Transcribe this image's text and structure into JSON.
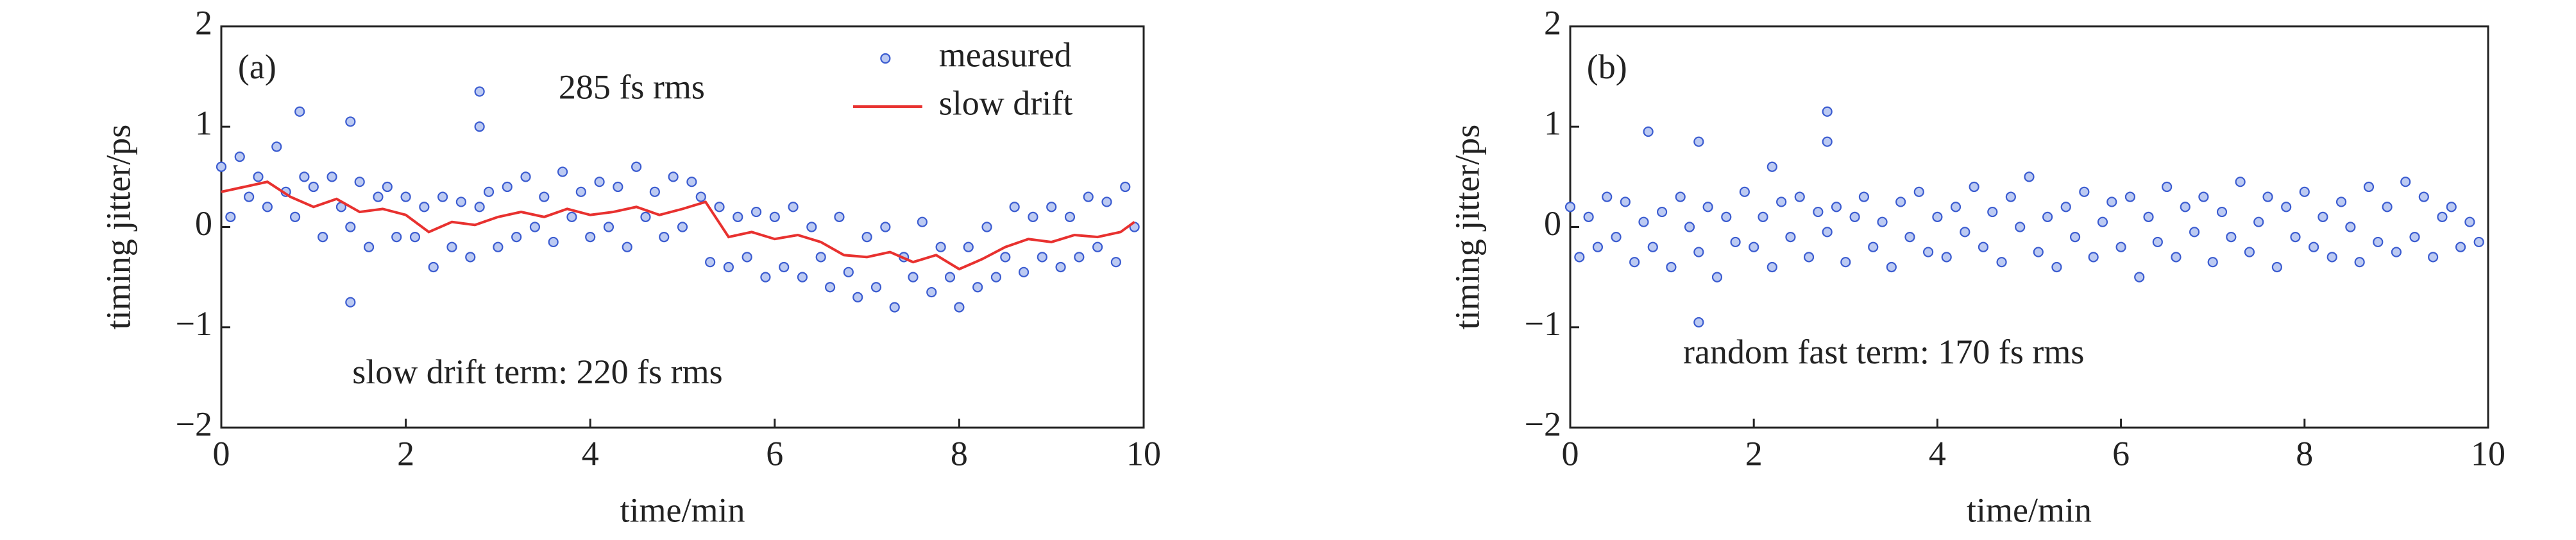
{
  "chart_data": [
    {
      "type": "scatter",
      "label": "(a)",
      "xlabel": "time/min",
      "ylabel": "timing jitter/ps",
      "annotations": [
        "285 fs rms",
        "slow drift term: 220 fs rms"
      ],
      "xlim": [
        0,
        10
      ],
      "ylim": [
        -2,
        2
      ],
      "xticks": [
        0,
        2,
        4,
        6,
        8,
        10
      ],
      "yticks": [
        {
          "value": -2,
          "label": "−2"
        },
        {
          "value": -1,
          "label": "−1"
        },
        0,
        1,
        2
      ],
      "legend": "upper right",
      "series": [
        {
          "name": "measured",
          "type": "scatter",
          "color": "#3a5bd0",
          "x": [
            0,
            0.1,
            0.2,
            0.3,
            0.4,
            0.5,
            0.6,
            0.7,
            0.8,
            0.9,
            1,
            1.1,
            1.2,
            1.3,
            1.4,
            1.5,
            1.6,
            1.7,
            1.8,
            1.9,
            2,
            2.1,
            2.2,
            2.3,
            2.4,
            2.5,
            2.6,
            2.7,
            2.8,
            2.9,
            3,
            3.1,
            3.2,
            3.3,
            3.4,
            3.5,
            3.6,
            3.7,
            3.8,
            3.9,
            4,
            4.1,
            4.2,
            4.3,
            4.4,
            4.5,
            4.6,
            4.7,
            4.8,
            4.9,
            5,
            5.1,
            5.2,
            5.3,
            5.4,
            5.5,
            5.6,
            5.7,
            5.8,
            5.9,
            6,
            6.1,
            6.2,
            6.3,
            6.4,
            6.5,
            6.6,
            6.7,
            6.8,
            6.9,
            7,
            7.1,
            7.2,
            7.3,
            7.4,
            7.5,
            7.6,
            7.7,
            7.8,
            7.9,
            8,
            8.1,
            8.2,
            8.3,
            8.4,
            8.5,
            8.6,
            8.7,
            8.8,
            8.9,
            9,
            9.1,
            9.2,
            9.3,
            9.4,
            9.5,
            9.6,
            9.7,
            9.8,
            9.9,
            0.85,
            1.4,
            2.8,
            2.8,
            1.4
          ],
          "values": [
            0.6,
            0.1,
            0.7,
            0.3,
            0.5,
            0.2,
            0.8,
            0.35,
            0.1,
            0.5,
            0.4,
            -0.1,
            0.5,
            0.2,
            0.0,
            0.45,
            -0.2,
            0.3,
            0.4,
            -0.1,
            0.3,
            -0.1,
            0.2,
            -0.4,
            0.3,
            -0.2,
            0.25,
            -0.3,
            0.2,
            0.35,
            -0.2,
            0.4,
            -0.1,
            0.5,
            0.0,
            0.3,
            -0.15,
            0.55,
            0.1,
            0.35,
            -0.1,
            0.45,
            0.0,
            0.4,
            -0.2,
            0.6,
            0.1,
            0.35,
            -0.1,
            0.5,
            0.0,
            0.45,
            0.3,
            -0.35,
            0.2,
            -0.4,
            0.1,
            -0.3,
            0.15,
            -0.5,
            0.1,
            -0.4,
            0.2,
            -0.5,
            0.0,
            -0.3,
            -0.6,
            0.1,
            -0.45,
            -0.7,
            -0.1,
            -0.6,
            0.0,
            -0.8,
            -0.3,
            -0.5,
            0.05,
            -0.65,
            -0.2,
            -0.5,
            -0.8,
            -0.2,
            -0.6,
            0.0,
            -0.5,
            -0.3,
            0.2,
            -0.45,
            0.1,
            -0.3,
            0.2,
            -0.4,
            0.1,
            -0.3,
            0.3,
            -0.2,
            0.25,
            -0.35,
            0.4,
            0.0,
            1.15,
            1.05,
            1.35,
            1.0,
            -0.75
          ]
        },
        {
          "name": "slow drift",
          "type": "line",
          "color": "#e8312f",
          "x": [
            0,
            0.25,
            0.5,
            0.75,
            1,
            1.25,
            1.5,
            1.75,
            2,
            2.25,
            2.5,
            2.75,
            3,
            3.25,
            3.5,
            3.75,
            4,
            4.25,
            4.5,
            4.75,
            5,
            5.25,
            5.5,
            5.75,
            6,
            6.25,
            6.5,
            6.75,
            7,
            7.25,
            7.5,
            7.75,
            8,
            8.25,
            8.5,
            8.75,
            9,
            9.25,
            9.5,
            9.75,
            9.9
          ],
          "values": [
            0.35,
            0.4,
            0.45,
            0.3,
            0.2,
            0.28,
            0.15,
            0.18,
            0.12,
            -0.05,
            0.05,
            0.02,
            0.1,
            0.15,
            0.1,
            0.18,
            0.12,
            0.15,
            0.2,
            0.12,
            0.18,
            0.25,
            -0.1,
            -0.05,
            -0.12,
            -0.08,
            -0.15,
            -0.28,
            -0.3,
            -0.25,
            -0.35,
            -0.28,
            -0.42,
            -0.32,
            -0.2,
            -0.12,
            -0.15,
            -0.08,
            -0.1,
            -0.05,
            0.05
          ]
        }
      ]
    },
    {
      "type": "scatter",
      "label": "(b)",
      "xlabel": "time/min",
      "ylabel": "timing jitter/ps",
      "annotations": [
        "random fast term: 170 fs rms"
      ],
      "xlim": [
        0,
        10
      ],
      "ylim": [
        -2,
        2
      ],
      "xticks": [
        0,
        2,
        4,
        6,
        8,
        10
      ],
      "yticks": [
        {
          "value": -2,
          "label": "−2"
        },
        {
          "value": -1,
          "label": "−1"
        },
        0,
        1,
        2
      ],
      "series": [
        {
          "type": "scatter",
          "color": "#3a5bd0",
          "x": [
            0,
            0.1,
            0.2,
            0.3,
            0.4,
            0.5,
            0.6,
            0.7,
            0.8,
            0.9,
            1,
            1.1,
            1.2,
            1.3,
            1.4,
            1.5,
            1.6,
            1.7,
            1.8,
            1.9,
            2,
            2.1,
            2.2,
            2.3,
            2.4,
            2.5,
            2.6,
            2.7,
            2.8,
            2.9,
            3,
            3.1,
            3.2,
            3.3,
            3.4,
            3.5,
            3.6,
            3.7,
            3.8,
            3.9,
            4,
            4.1,
            4.2,
            4.3,
            4.4,
            4.5,
            4.6,
            4.7,
            4.8,
            4.9,
            5,
            5.1,
            5.2,
            5.3,
            5.4,
            5.5,
            5.6,
            5.7,
            5.8,
            5.9,
            6,
            6.1,
            6.2,
            6.3,
            6.4,
            6.5,
            6.6,
            6.7,
            6.8,
            6.9,
            7,
            7.1,
            7.2,
            7.3,
            7.4,
            7.5,
            7.6,
            7.7,
            7.8,
            7.9,
            8,
            8.1,
            8.2,
            8.3,
            8.4,
            8.5,
            8.6,
            8.7,
            8.8,
            8.9,
            9,
            9.1,
            9.2,
            9.3,
            9.4,
            9.5,
            9.6,
            9.7,
            9.8,
            9.9,
            0.85,
            1.4,
            2.8,
            2.8,
            1.4,
            2.2
          ],
          "values": [
            0.2,
            -0.3,
            0.1,
            -0.2,
            0.3,
            -0.1,
            0.25,
            -0.35,
            0.05,
            -0.2,
            0.15,
            -0.4,
            0.3,
            0.0,
            -0.25,
            0.2,
            -0.5,
            0.1,
            -0.15,
            0.35,
            -0.2,
            0.1,
            -0.4,
            0.25,
            -0.1,
            0.3,
            -0.3,
            0.15,
            -0.05,
            0.2,
            -0.35,
            0.1,
            0.3,
            -0.2,
            0.05,
            -0.4,
            0.25,
            -0.1,
            0.35,
            -0.25,
            0.1,
            -0.3,
            0.2,
            -0.05,
            0.4,
            -0.2,
            0.15,
            -0.35,
            0.3,
            0.0,
            0.5,
            -0.25,
            0.1,
            -0.4,
            0.2,
            -0.1,
            0.35,
            -0.3,
            0.05,
            0.25,
            -0.2,
            0.3,
            -0.5,
            0.1,
            -0.15,
            0.4,
            -0.3,
            0.2,
            -0.05,
            0.3,
            -0.35,
            0.15,
            -0.1,
            0.45,
            -0.25,
            0.05,
            0.3,
            -0.4,
            0.2,
            -0.1,
            0.35,
            -0.2,
            0.1,
            -0.3,
            0.25,
            0.0,
            -0.35,
            0.4,
            -0.15,
            0.2,
            -0.25,
            0.45,
            -0.1,
            0.3,
            -0.3,
            0.1,
            0.2,
            -0.2,
            0.05,
            -0.15,
            0.95,
            0.85,
            1.15,
            0.85,
            -0.95,
            0.6
          ]
        }
      ]
    }
  ]
}
